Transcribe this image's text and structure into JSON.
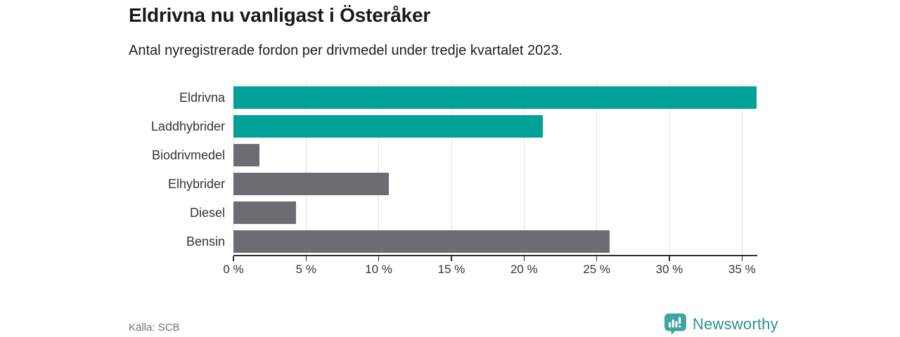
{
  "header": {
    "title": "Eldrivna nu vanligast i Österåker",
    "subtitle": "Antal nyregistrerade fordon per drivmedel under tredje kvartalet 2023."
  },
  "chart_data": {
    "type": "bar",
    "orientation": "horizontal",
    "title": "Eldrivna nu vanligast i Österåker",
    "subtitle": "Antal nyregistrerade fordon per drivmedel under tredje kvartalet 2023.",
    "categories": [
      "Eldrivna",
      "Laddhybrider",
      "Biodrivmedel",
      "Elhybrider",
      "Diesel",
      "Bensin"
    ],
    "values": [
      36.0,
      21.3,
      1.8,
      10.7,
      4.3,
      25.9
    ],
    "unit": "%",
    "xlabel": "",
    "ylabel": "",
    "xlim": [
      0,
      36
    ],
    "x_ticks": [
      0,
      5,
      10,
      15,
      20,
      25,
      30,
      35
    ],
    "x_tick_labels": [
      "0 %",
      "5 %",
      "10 %",
      "15 %",
      "20 %",
      "25 %",
      "30 %",
      "35 %"
    ],
    "grid": true,
    "legend": false,
    "bar_colors": [
      "#00a199",
      "#00a199",
      "#6c6c72",
      "#6c6c72",
      "#6c6c72",
      "#6c6c72"
    ],
    "highlight_color": "#00a199",
    "default_color": "#6c6c72"
  },
  "footer": {
    "source": "Källa: SCB",
    "brand": "Newsworthy"
  },
  "colors": {
    "teal": "#00a199",
    "gray": "#6c6c72",
    "gridline": "#e3e3e3",
    "axis": "#2e2e2e",
    "brand_icon": "#3da69e",
    "brand_text": "#2f908a"
  }
}
